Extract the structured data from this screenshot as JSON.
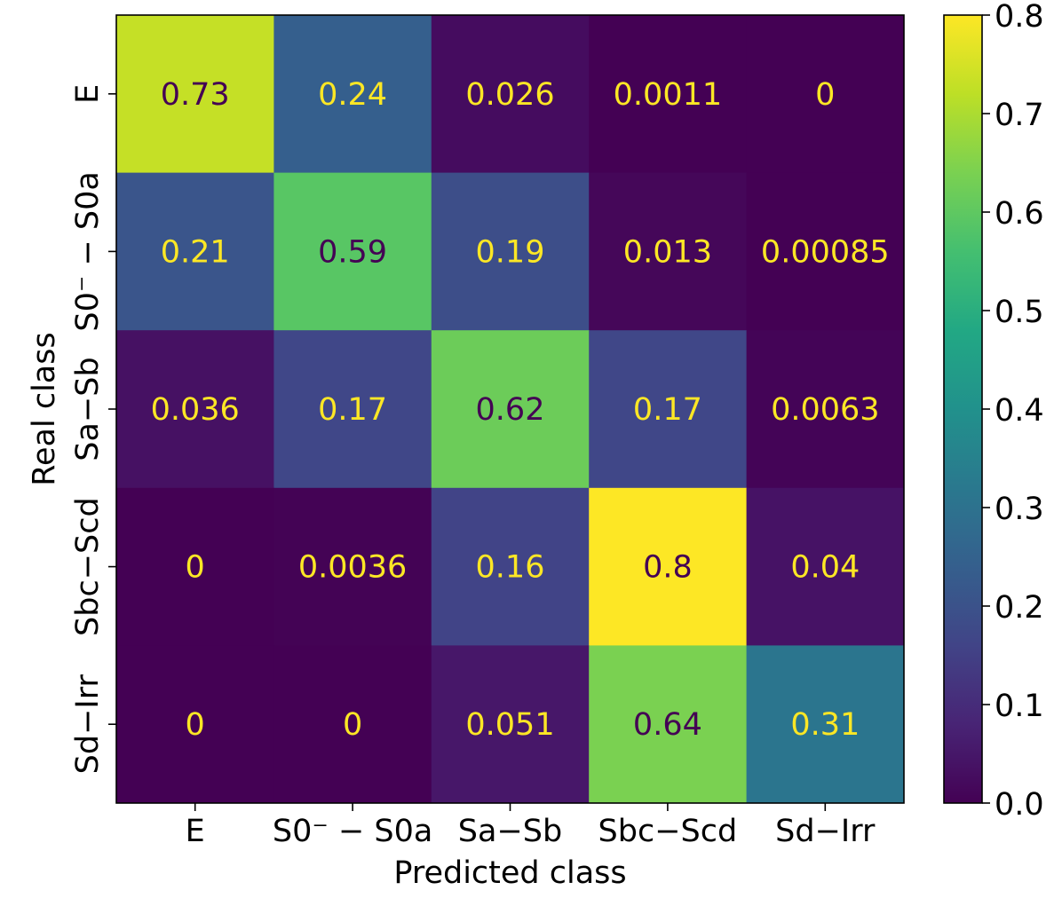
{
  "chart_data": {
    "type": "heatmap",
    "title": "",
    "xlabel": "Predicted class",
    "ylabel": "Real class",
    "x_categories": [
      "E",
      "S0⁻ − S0a",
      "Sa−Sb",
      "Sbc−Scd",
      "Sd−Irr"
    ],
    "y_categories": [
      "E",
      "S0⁻ − S0a",
      "Sa−Sb",
      "Sbc−Scd",
      "Sd−Irr"
    ],
    "values": [
      [
        0.73,
        0.24,
        0.026,
        0.0011,
        0
      ],
      [
        0.21,
        0.59,
        0.19,
        0.013,
        0.00085
      ],
      [
        0.036,
        0.17,
        0.62,
        0.17,
        0.0063
      ],
      [
        0,
        0.0036,
        0.16,
        0.8,
        0.04
      ],
      [
        0,
        0,
        0.051,
        0.64,
        0.31
      ]
    ],
    "cell_labels": [
      [
        "0.73",
        "0.24",
        "0.026",
        "0.0011",
        "0"
      ],
      [
        "0.21",
        "0.59",
        "0.19",
        "0.013",
        "0.00085"
      ],
      [
        "0.036",
        "0.17",
        "0.62",
        "0.17",
        "0.0063"
      ],
      [
        "0",
        "0.0036",
        "0.16",
        "0.8",
        "0.04"
      ],
      [
        "0",
        "0",
        "0.051",
        "0.64",
        "0.31"
      ]
    ],
    "colormap": "viridis",
    "colorbar": {
      "range": [
        0.0,
        0.8
      ],
      "ticks": [
        "0.0",
        "0.1",
        "0.2",
        "0.3",
        "0.4",
        "0.5",
        "0.6",
        "0.7",
        "0.8"
      ]
    },
    "text_colors": {
      "light_cells": "#440154",
      "dark_cells": "#fde725"
    },
    "grid": false
  }
}
